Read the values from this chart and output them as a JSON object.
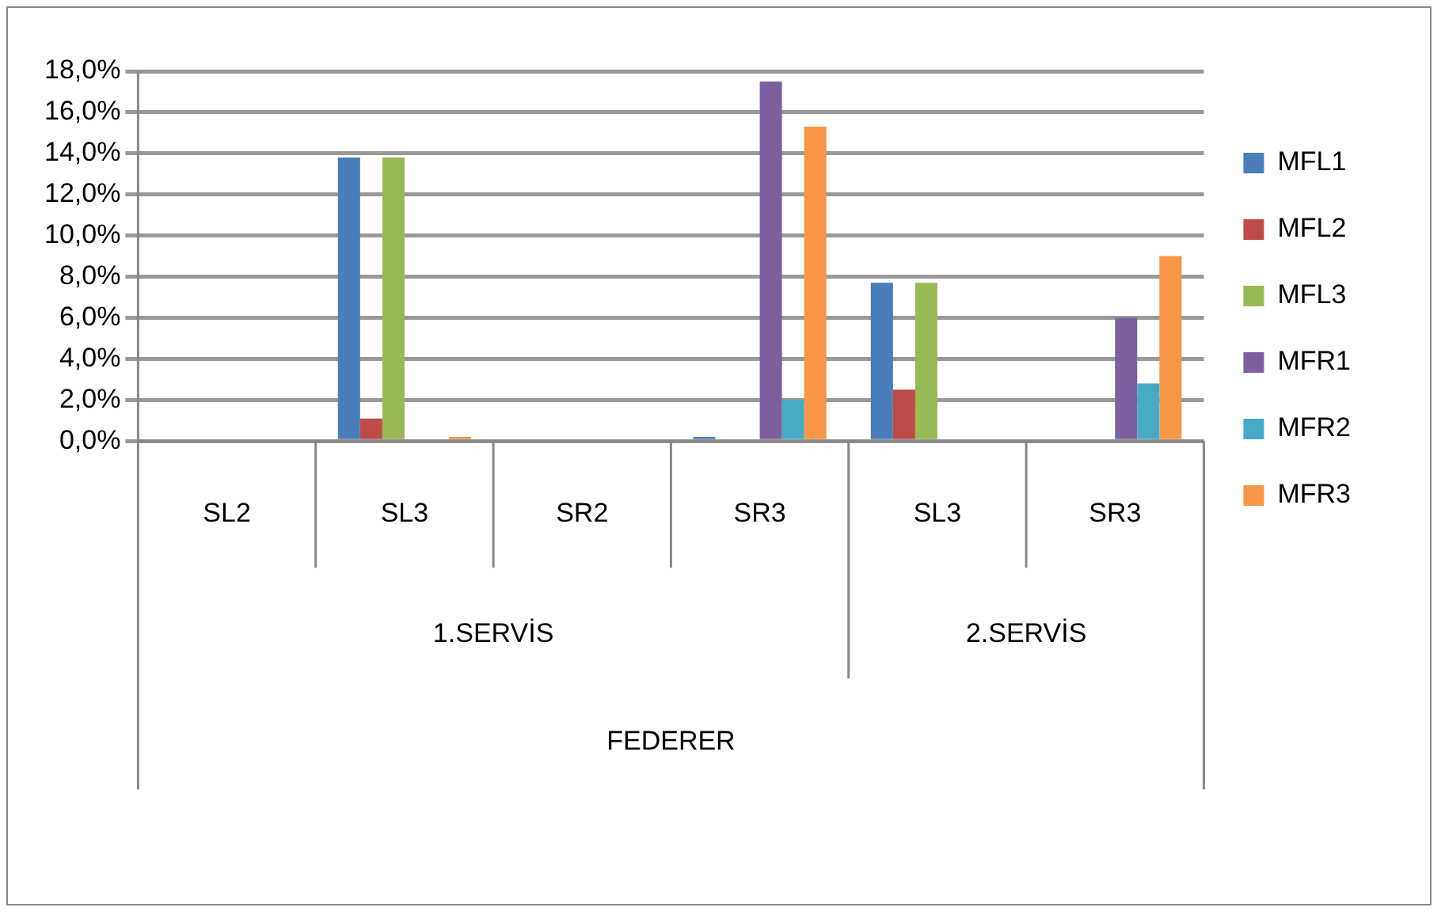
{
  "chart_data": {
    "type": "bar",
    "categories": [
      "SL2",
      "SL3",
      "SR2",
      "SR3",
      "SL3",
      "SR3"
    ],
    "series": [
      {
        "name": "MFL1",
        "color": "#4a7ebb",
        "values": [
          0,
          13.8,
          0,
          0.2,
          7.7,
          0
        ]
      },
      {
        "name": "MFL2",
        "color": "#be4b48",
        "values": [
          0,
          1.1,
          0,
          0,
          2.5,
          0
        ]
      },
      {
        "name": "MFL3",
        "color": "#98b954",
        "values": [
          0,
          13.8,
          0,
          0,
          7.7,
          0
        ]
      },
      {
        "name": "MFR1",
        "color": "#7d60a0",
        "values": [
          0,
          0,
          0,
          17.5,
          0,
          6.0
        ]
      },
      {
        "name": "MFR2",
        "color": "#46aac5",
        "values": [
          0,
          0,
          0,
          2.0,
          0,
          2.8
        ]
      },
      {
        "name": "MFR3",
        "color": "#f79646",
        "values": [
          0,
          0.2,
          0,
          15.3,
          0,
          9.0
        ]
      }
    ],
    "ylim": [
      0,
      18
    ],
    "yticks": [
      {
        "value": 0,
        "label": "0,0%"
      },
      {
        "value": 2,
        "label": "2,0%"
      },
      {
        "value": 4,
        "label": "4,0%"
      },
      {
        "value": 6,
        "label": "6,0%"
      },
      {
        "value": 8,
        "label": "8,0%"
      },
      {
        "value": 10,
        "label": "10,0%"
      },
      {
        "value": 12,
        "label": "12,0%"
      },
      {
        "value": 14,
        "label": "14,0%"
      },
      {
        "value": 16,
        "label": "16,0%"
      },
      {
        "value": 18,
        "label": "18,0%"
      }
    ],
    "annotations": [
      "1.SERVİS",
      "2.SERVİS",
      "FEDERER"
    ],
    "grid": "y",
    "legend": "right"
  }
}
